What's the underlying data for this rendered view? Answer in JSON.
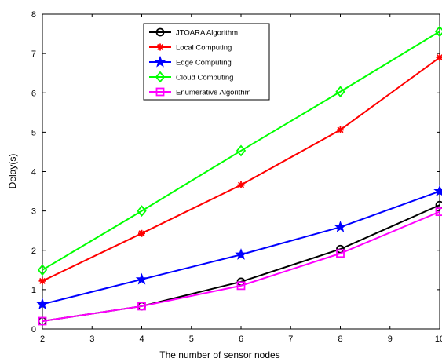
{
  "chart_data": {
    "type": "line",
    "title": "",
    "xlabel": "The number of sensor nodes",
    "ylabel": "Delay(s)",
    "xlim": [
      2,
      10
    ],
    "ylim": [
      0,
      8
    ],
    "xticks": [
      "2",
      "3",
      "4",
      "5",
      "6",
      "7",
      "8",
      "9",
      "10"
    ],
    "yticks": [
      "0",
      "1",
      "2",
      "3",
      "4",
      "5",
      "6",
      "7",
      "8"
    ],
    "x": [
      2,
      4,
      6,
      8,
      10
    ],
    "grid": false,
    "legend_position": "top-center",
    "series": [
      {
        "name": "JTOARA Algorithm",
        "color": "#000000",
        "marker": "circle",
        "values": [
          0.2,
          0.58,
          1.2,
          2.03,
          3.15
        ]
      },
      {
        "name": "Local Computing",
        "color": "#ff0000",
        "marker": "asterisk",
        "values": [
          1.22,
          2.43,
          3.66,
          5.06,
          6.9
        ]
      },
      {
        "name": "Edge Computing",
        "color": "#0000ff",
        "marker": "star",
        "values": [
          0.63,
          1.26,
          1.89,
          2.59,
          3.5
        ]
      },
      {
        "name": "Cloud Computing",
        "color": "#00ff00",
        "marker": "diamond",
        "values": [
          1.5,
          3.0,
          4.53,
          6.03,
          7.56
        ]
      },
      {
        "name": "Enumerative Algorithm",
        "color": "#ff00ff",
        "marker": "square",
        "values": [
          0.2,
          0.58,
          1.1,
          1.92,
          2.98
        ]
      }
    ]
  }
}
